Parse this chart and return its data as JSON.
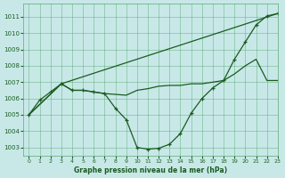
{
  "title": "Graphe pression niveau de la mer (hPa)",
  "background_color": "#c8e8e8",
  "grid_color": "#5aaa70",
  "line_color": "#1a5c20",
  "xlim": [
    -0.5,
    23
  ],
  "ylim": [
    1002.5,
    1011.8
  ],
  "yticks": [
    1003,
    1004,
    1005,
    1006,
    1007,
    1008,
    1009,
    1010,
    1011
  ],
  "xticks": [
    0,
    1,
    2,
    3,
    4,
    5,
    6,
    7,
    8,
    9,
    10,
    11,
    12,
    13,
    14,
    15,
    16,
    17,
    18,
    19,
    20,
    21,
    22,
    23
  ],
  "series": [
    {
      "x": [
        0,
        1,
        2,
        3,
        4,
        5,
        6,
        7,
        8,
        9,
        10,
        11,
        12,
        13,
        14,
        15,
        16,
        17,
        18,
        19,
        20,
        21,
        22,
        23
      ],
      "y": [
        1005.0,
        1005.9,
        1006.4,
        1006.9,
        1006.5,
        1006.5,
        1006.4,
        1006.3,
        1005.4,
        1004.7,
        1003.0,
        1002.9,
        1002.95,
        1003.2,
        1003.85,
        1005.1,
        1006.0,
        1006.65,
        1007.1,
        1008.4,
        1009.45,
        1010.5,
        1011.05,
        1011.2
      ],
      "has_markers": true
    },
    {
      "x": [
        0,
        3,
        23
      ],
      "y": [
        1005.0,
        1006.9,
        1011.2
      ],
      "has_markers": false
    },
    {
      "x": [
        0,
        3,
        4,
        5,
        6,
        7,
        8,
        9,
        10,
        11,
        12,
        13,
        14,
        15,
        16,
        17,
        18,
        19,
        20,
        21,
        22,
        23
      ],
      "y": [
        1005.0,
        1006.9,
        1006.5,
        1006.5,
        1006.4,
        1006.3,
        1006.25,
        1006.2,
        1006.5,
        1006.6,
        1006.75,
        1006.8,
        1006.8,
        1006.9,
        1006.9,
        1007.0,
        1007.1,
        1007.5,
        1008.0,
        1008.4,
        1007.1,
        1007.1
      ],
      "has_markers": false
    }
  ]
}
